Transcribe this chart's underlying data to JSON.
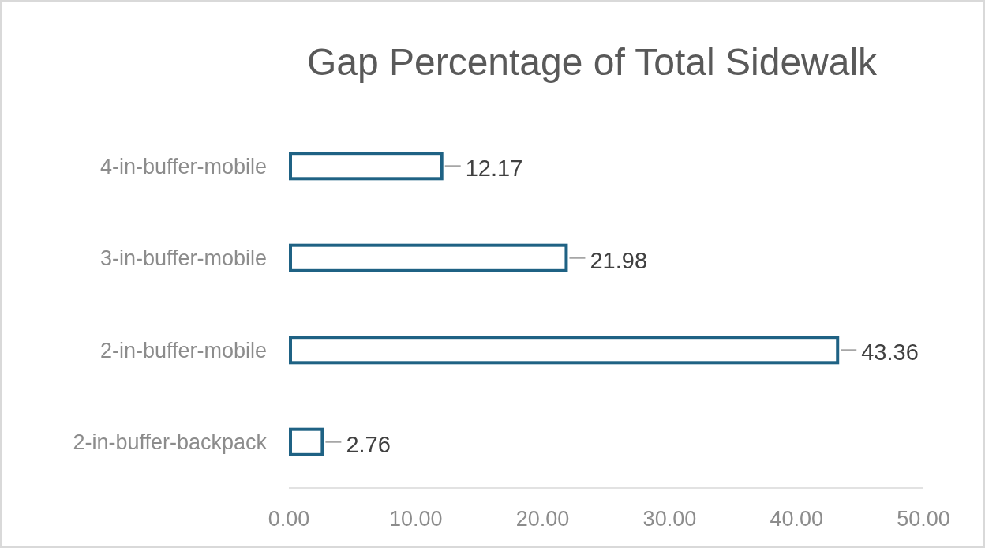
{
  "chart_data": {
    "type": "bar",
    "orientation": "horizontal",
    "title": "Gap Percentage of Total Sidewalk",
    "categories": [
      "4-in-buffer-mobile",
      "3-in-buffer-mobile",
      "2-in-buffer-mobile",
      "2-in-buffer-backpack"
    ],
    "values": [
      12.17,
      21.98,
      43.36,
      2.76
    ],
    "color": "#1f6284",
    "xlim": [
      0,
      50
    ],
    "xticks": [
      {
        "value": 0,
        "label": "0.00"
      },
      {
        "value": 10,
        "label": "10.00"
      },
      {
        "value": 20,
        "label": "20.00"
      },
      {
        "value": 30,
        "label": "30.00"
      },
      {
        "value": 40,
        "label": "40.00"
      },
      {
        "value": 50,
        "label": "50.00"
      }
    ],
    "data_labels": true,
    "grid": false
  }
}
